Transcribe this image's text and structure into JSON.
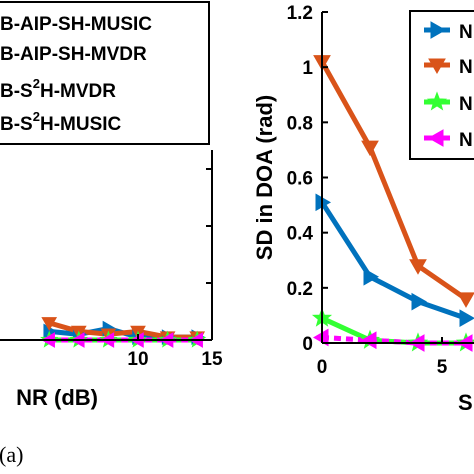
{
  "caption": "(a)",
  "chart_data": [
    {
      "type": "line",
      "panel": "a",
      "xlabel_visible": "NR (dB)",
      "ylabel": "",
      "xlim": [
        0,
        15
      ],
      "x_ticks": [
        "10",
        "15"
      ],
      "grid": false,
      "legend_position": "top",
      "legend": [
        "B-AIP-SH-MUSIC",
        "B-AIP-SH-MVDR",
        "B-S²H-MVDR",
        "B-S²H-MUSIC"
      ],
      "series": [
        {
          "name": "B-AIP-SH-MUSIC",
          "color": "#0072BD",
          "marker": "triangle-right",
          "x": [
            4,
            6,
            8,
            10,
            12,
            14
          ],
          "y": [
            0.03,
            0.02,
            0.04,
            0.01,
            0.01,
            0.01
          ]
        },
        {
          "name": "B-AIP-SH-MVDR",
          "color": "#D95319",
          "marker": "triangle-down",
          "x": [
            4,
            6,
            8,
            10,
            12,
            14
          ],
          "y": [
            0.06,
            0.03,
            0.02,
            0.03,
            0.01,
            0.01
          ]
        },
        {
          "name": "B-S²H-MVDR",
          "color": "#33FF33",
          "marker": "star",
          "x": [
            4,
            6,
            8,
            10,
            12,
            14
          ],
          "y": [
            0.0,
            0.0,
            0.0,
            0.0,
            0.0,
            0.0
          ]
        },
        {
          "name": "B-S²H-MUSIC",
          "color": "#FF00FF",
          "marker": "triangle-left",
          "x": [
            4,
            6,
            8,
            10,
            12,
            14
          ],
          "y": [
            0.0,
            0.0,
            0.0,
            0.0,
            0.0,
            0.0
          ]
        }
      ]
    },
    {
      "type": "line",
      "panel": "b",
      "xlabel_visible": "S",
      "ylabel": "SD in DOA (rad)",
      "ylim": [
        0,
        1.2
      ],
      "y_ticks": [
        "0",
        "0.2",
        "0.4",
        "0.6",
        "0.8",
        "1",
        "1.2"
      ],
      "x_ticks": [
        "0",
        "5"
      ],
      "grid": false,
      "legend_position": "top-right",
      "legend": [
        "N",
        "N",
        "N",
        "N"
      ],
      "series": [
        {
          "name": "",
          "color": "#0072BD",
          "marker": "triangle-right",
          "x": [
            0,
            2,
            4,
            6
          ],
          "y": [
            0.51,
            0.24,
            0.15,
            0.09
          ]
        },
        {
          "name": "",
          "color": "#D95319",
          "marker": "triangle-down",
          "x": [
            0,
            2,
            4,
            6
          ],
          "y": [
            1.02,
            0.71,
            0.28,
            0.16
          ]
        },
        {
          "name": "",
          "color": "#33FF33",
          "marker": "star",
          "x": [
            0,
            2,
            4,
            6
          ],
          "y": [
            0.09,
            0.01,
            0.0,
            0.0
          ]
        },
        {
          "name": "",
          "color": "#FF00FF",
          "marker": "triangle-left",
          "x": [
            0,
            2,
            4,
            6
          ],
          "y": [
            0.02,
            0.01,
            0.0,
            0.0
          ]
        }
      ]
    }
  ]
}
